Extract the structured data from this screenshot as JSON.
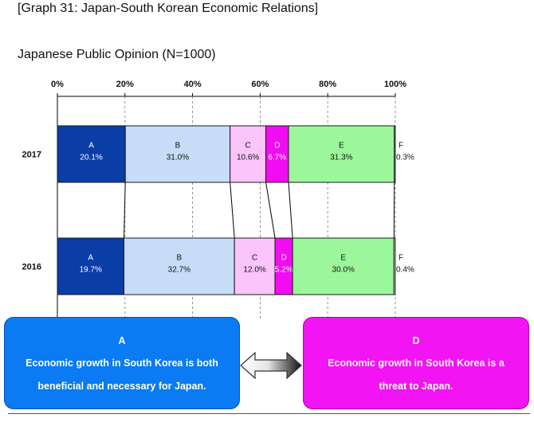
{
  "title": "[Graph 31: Japan-South Korean Economic Relations]",
  "subtitle": "Japanese Public Opinion (N=1000)",
  "chart_data": {
    "type": "bar",
    "orientation": "horizontal-stacked-100",
    "xlim": [
      0,
      100
    ],
    "x_ticks": [
      "0%",
      "20%",
      "40%",
      "60%",
      "80%",
      "100%"
    ],
    "grid": true,
    "rows": [
      {
        "label": "2017",
        "segments": [
          {
            "name": "A",
            "value": 20.1,
            "label": "20.1%"
          },
          {
            "name": "B",
            "value": 31.0,
            "label": "31.0%"
          },
          {
            "name": "C",
            "value": 10.6,
            "label": "10.6%"
          },
          {
            "name": "D",
            "value": 6.7,
            "label": "6.7%"
          },
          {
            "name": "E",
            "value": 31.3,
            "label": "31.3%"
          },
          {
            "name": "F",
            "value": 0.3,
            "label": "0.3%"
          }
        ]
      },
      {
        "label": "2016",
        "segments": [
          {
            "name": "A",
            "value": 19.7,
            "label": "19.7%"
          },
          {
            "name": "B",
            "value": 32.7,
            "label": "32.7%"
          },
          {
            "name": "C",
            "value": 12.0,
            "label": "12.0%"
          },
          {
            "name": "D",
            "value": 5.2,
            "label": "5.2%"
          },
          {
            "name": "E",
            "value": 30.0,
            "label": "30.0%"
          },
          {
            "name": "F",
            "value": 0.4,
            "label": "0.4%"
          }
        ]
      }
    ],
    "colors": {
      "A": "#0a3da6",
      "B": "#c6dcf7",
      "C": "#fbc4fb",
      "D": "#f20cf2",
      "E": "#9cf79c",
      "F": "#ffffff"
    }
  },
  "callouts": {
    "a": {
      "title": "A",
      "line1": "Economic growth in South Korea is both",
      "line2": "beneficial and necessary for Japan."
    },
    "d": {
      "title": "D",
      "line1": "Economic growth in South Korea is a",
      "line2": "threat to Japan."
    }
  }
}
